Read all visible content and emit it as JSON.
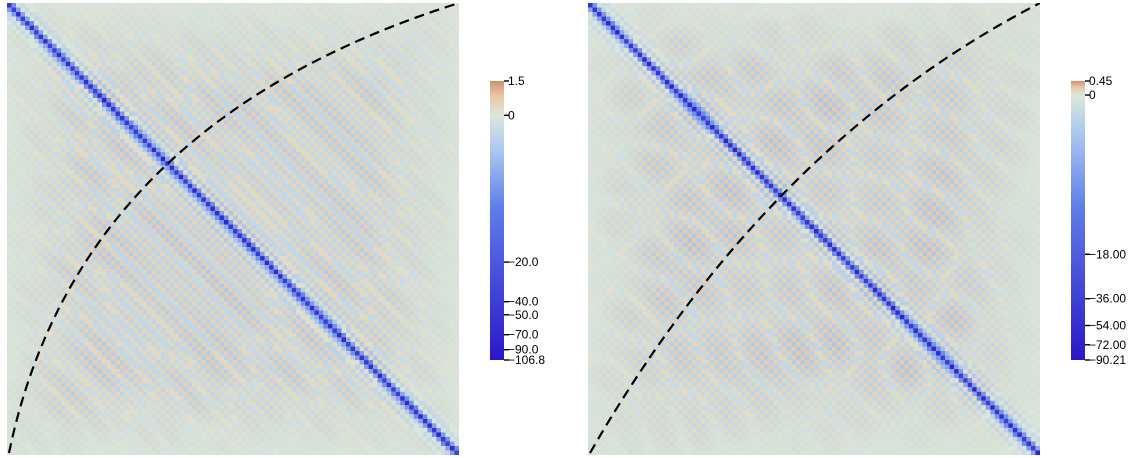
{
  "chart_data": [
    {
      "type": "heatmap",
      "title": "",
      "xlabel": "",
      "ylabel": "",
      "grid": false,
      "n_cells": 100,
      "colormap": [
        "#2b17c9",
        "#5f7ee8",
        "#a9c6f0",
        "#dce6dc",
        "#e8c9a3",
        "#d08f73"
      ],
      "diagonal_line": "main anti-diagonal (top-left to bottom-right)",
      "dashed_curve": "concave arc from bottom-left to top-right, crossing the diagonal near the upper-left",
      "colorbar": {
        "min": -106.8,
        "max": 1.5,
        "scale": "symlog",
        "ticks": [
          {
            "value": 1.5,
            "label": "1.5"
          },
          {
            "value": 0,
            "label": "0"
          },
          {
            "value": -20.0,
            "label": "−20.0"
          },
          {
            "value": -40.0,
            "label": "−40.0"
          },
          {
            "value": -50.0,
            "label": "−50.0"
          },
          {
            "value": -70.0,
            "label": "−70.0"
          },
          {
            "value": -90.0,
            "label": "−90.0"
          },
          {
            "value": -106.8,
            "label": "−106.8"
          }
        ]
      }
    },
    {
      "type": "heatmap",
      "title": "",
      "xlabel": "",
      "ylabel": "",
      "grid": false,
      "n_cells": 100,
      "colormap": [
        "#2b17c9",
        "#5f7ee8",
        "#a9c6f0",
        "#dce6dc",
        "#e8c9a3",
        "#d08f73"
      ],
      "diagonal_line": "main anti-diagonal (top-left to bottom-right)",
      "dashed_curve": "concave arc from bottom-left to top-right, crossing the diagonal near the middle-left",
      "colorbar": {
        "min": -90.21,
        "max": 0.45,
        "scale": "symlog",
        "ticks": [
          {
            "value": 0.45,
            "label": "0.45"
          },
          {
            "value": 0,
            "label": "0"
          },
          {
            "value": -18.0,
            "label": "−18.00"
          },
          {
            "value": -36.0,
            "label": "−36.00"
          },
          {
            "value": -54.0,
            "label": "−54.00"
          },
          {
            "value": -72.0,
            "label": "−72.00"
          },
          {
            "value": -90.21,
            "label": "−90.21"
          }
        ]
      }
    }
  ]
}
